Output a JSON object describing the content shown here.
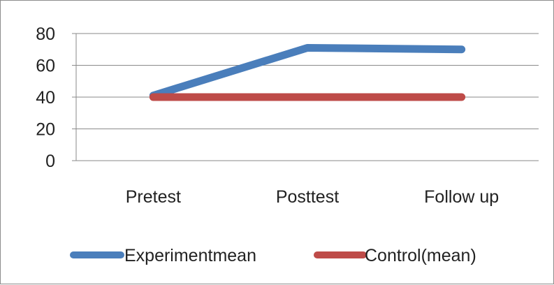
{
  "chart_data": {
    "type": "line",
    "categories": [
      "Pretest",
      "Posttest",
      "Follow up"
    ],
    "series": [
      {
        "name": "Experimentmean",
        "values": [
          41,
          71,
          70
        ],
        "color": "#4a7ebb"
      },
      {
        "name": "Control(mean)",
        "values": [
          40,
          40,
          40
        ],
        "color": "#be4b48"
      }
    ],
    "title": "",
    "xlabel": "",
    "ylabel": "",
    "ylim": [
      0,
      80
    ],
    "yticks": [
      "0",
      "20",
      "40",
      "60",
      "80"
    ],
    "grid": true,
    "legend_position": "bottom"
  }
}
